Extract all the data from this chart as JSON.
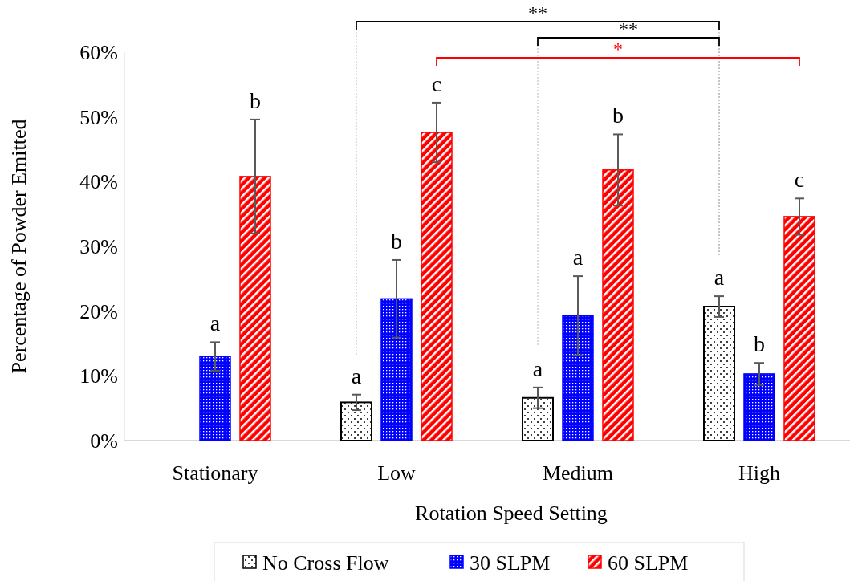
{
  "chart_data": {
    "type": "bar",
    "xlabel": "Rotation Speed Setting",
    "ylabel": "Percentage of Powder Emitted",
    "categories": [
      "Stationary",
      "Low",
      "Medium",
      "High"
    ],
    "series": [
      {
        "name": "No Cross Flow",
        "color": "#000000",
        "values": [
          null,
          5.9,
          6.6,
          20.7
        ],
        "errors": [
          null,
          1.2,
          1.6,
          1.6
        ],
        "value_labels": [
          null,
          "a",
          "a",
          "a"
        ]
      },
      {
        "name": "30 SLPM",
        "color": "#0000ff",
        "values": [
          13.0,
          21.9,
          19.3,
          10.3
        ],
        "errors": [
          2.2,
          6.0,
          6.1,
          1.7
        ],
        "value_labels": [
          "a",
          "b",
          "a",
          "b"
        ]
      },
      {
        "name": "60 SLPM",
        "color": "#ff0000",
        "values": [
          40.8,
          47.6,
          41.8,
          34.6
        ],
        "errors": [
          8.8,
          4.6,
          5.5,
          2.8
        ],
        "value_labels": [
          "b",
          "c",
          "b",
          "c"
        ]
      }
    ],
    "ylim": [
      0,
      60
    ],
    "yticks": [
      {
        "value": 0,
        "label": "0%"
      },
      {
        "value": 10,
        "label": "10%"
      },
      {
        "value": 20,
        "label": "20%"
      },
      {
        "value": 30,
        "label": "30%"
      },
      {
        "value": 40,
        "label": "40%"
      },
      {
        "value": 50,
        "label": "50%"
      },
      {
        "value": 60,
        "label": "60%"
      }
    ],
    "annotations": [
      "**",
      "**",
      "*"
    ],
    "legend": "bottom"
  }
}
